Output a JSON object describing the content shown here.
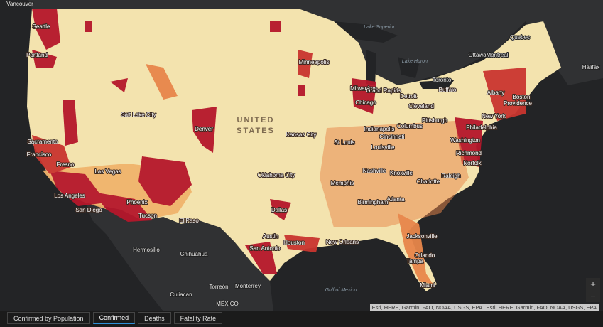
{
  "map": {
    "country_labels": [
      "UNITED",
      "STATES",
      "MÉXICO"
    ],
    "water_labels": [
      "Lake Superior",
      "Lake Huron",
      "Gulf of Mexico"
    ],
    "cities": [
      "Vancouver",
      "Seattle",
      "Portland",
      "Sacramento",
      "Francisco",
      "Fresno",
      "Los Angeles",
      "San Diego",
      "Las Vegas",
      "Phoenix",
      "Tucson",
      "Salt Lake City",
      "Denver",
      "El Paso",
      "Minneapolis",
      "Milwaukee",
      "Chicago",
      "Grand Rapids",
      "Detroit",
      "Toronto",
      "Ottawa",
      "Montreal",
      "Quebec",
      "Halifax",
      "Buffalo",
      "Albany",
      "Boston",
      "Providence",
      "New York",
      "Philadelphia",
      "Washington",
      "Richmond",
      "Norfolk",
      "Raleigh",
      "Charlotte",
      "Cleveland",
      "Pittsburgh",
      "Columbus",
      "Indianapolis",
      "Cincinnati",
      "Louisville",
      "St Louis",
      "Kansas City",
      "Oklahoma City",
      "Dallas",
      "Austin",
      "San Antonio",
      "Houston",
      "New Orleans",
      "Memphis",
      "Nashville",
      "Knoxville",
      "Atlanta",
      "Birmingham",
      "Jacksonville",
      "Orlando",
      "Tampa",
      "Miami",
      "Hermosillo",
      "Chihuahua",
      "Culiacan",
      "Torreón",
      "Monterrey"
    ]
  },
  "zoom": [
    "+",
    "−"
  ],
  "attribution": "Esri, HERE, Garmin, FAO, NOAA, USGS, EPA | Esri, HERE, Garmin, FAO, NOAA, USGS, EPA",
  "tabs": [
    "Confirmed by Population",
    "Confirmed",
    "Deaths",
    "Fatality Rate"
  ],
  "active_tab": 1
}
